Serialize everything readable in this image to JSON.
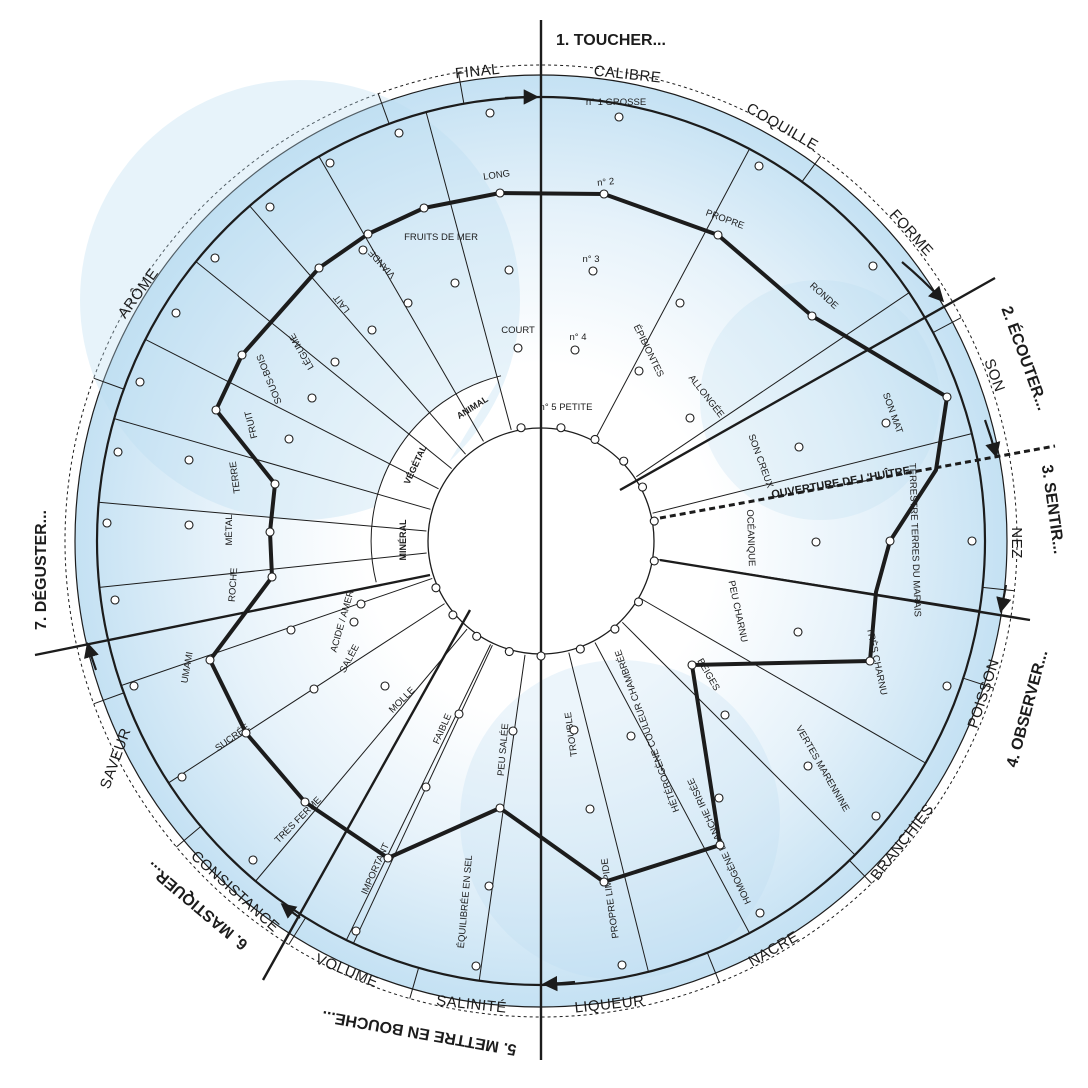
{
  "steps": [
    {
      "label": "1. TOUCHER..."
    },
    {
      "label": "2. ÉCOUTER..."
    },
    {
      "label": "3. SENTIR..."
    },
    {
      "label": "4. OBSERVER..."
    },
    {
      "label": "5. METTRE EN BOUCHE..."
    },
    {
      "label": "6. MASTIQUER..."
    },
    {
      "label": "7. DÉGUSTER..."
    }
  ],
  "criteria": [
    {
      "label": "CALIBRE"
    },
    {
      "label": "COQUILLE"
    },
    {
      "label": "FORME"
    },
    {
      "label": "SON"
    },
    {
      "label": "NEZ"
    },
    {
      "label": "POISSON"
    },
    {
      "label": "BRANCHIES"
    },
    {
      "label": "NACRE"
    },
    {
      "label": "LIQUEUR"
    },
    {
      "label": "SALINITÉ"
    },
    {
      "label": "VOLUME"
    },
    {
      "label": "CONSISTANCE"
    },
    {
      "label": "SAVEUR"
    },
    {
      "label": "ARÔME"
    },
    {
      "label": "FINAL"
    }
  ],
  "attributes": [
    {
      "label": "n° 1 GROSSE"
    },
    {
      "label": "n° 2"
    },
    {
      "label": "n° 3"
    },
    {
      "label": "n° 4"
    },
    {
      "label": "n° 5 PETITE"
    },
    {
      "label": "PROPRE"
    },
    {
      "label": "ÉPIBIONTES"
    },
    {
      "label": "RONDE"
    },
    {
      "label": "ALLONGÉE"
    },
    {
      "label": "SON MAT"
    },
    {
      "label": "SON CREUX"
    },
    {
      "label": "TERRESTRE TERRES DU MARAIS"
    },
    {
      "label": "OCÉANIQUE"
    },
    {
      "label": "TRÈS CHARNU"
    },
    {
      "label": "PEU CHARNU"
    },
    {
      "label": "VERTES MARENNINE"
    },
    {
      "label": "BEIGES"
    },
    {
      "label": "HOMOGÈNE BLANCHE IRISÉE"
    },
    {
      "label": "HÉTÉROGÈNE COULEUR CHAMBRÉE"
    },
    {
      "label": "PROPRE LIMPIDE"
    },
    {
      "label": "TROUBLE"
    },
    {
      "label": "ÉQUILIBRÉE EN SEL"
    },
    {
      "label": "PEU SALÉE"
    },
    {
      "label": "IMPORTANT"
    },
    {
      "label": "FAIBLE"
    },
    {
      "label": "TRÈS FERME"
    },
    {
      "label": "MOLLE"
    },
    {
      "label": "SUCRÉE"
    },
    {
      "label": "UMAMI"
    },
    {
      "label": "SALÉE"
    },
    {
      "label": "ACIDE / AMER"
    },
    {
      "label": "ROCHE"
    },
    {
      "label": "MÉTAL"
    },
    {
      "label": "TERRE"
    },
    {
      "label": "FRUIT"
    },
    {
      "label": "SOUS-BOIS"
    },
    {
      "label": "LÉGUME"
    },
    {
      "label": "LAIT"
    },
    {
      "label": "VIANDE"
    },
    {
      "label": "FRUITS DE MER"
    },
    {
      "label": "LONG"
    },
    {
      "label": "COURT"
    }
  ],
  "aroma_groups": [
    {
      "label": "MINÉRAL"
    },
    {
      "label": "VÉGÉTAL"
    },
    {
      "label": "ANIMAL"
    }
  ],
  "dashed_axis_text": "OUVERTURE DE L'HUÎTRE",
  "colors": {
    "ink": "#1c1c1c",
    "water_light": "#e6f2fa",
    "water_deep": "#b9dcf0"
  }
}
